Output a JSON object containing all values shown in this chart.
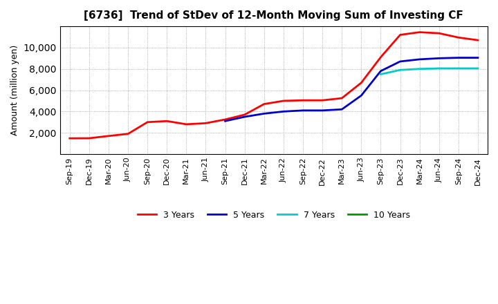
{
  "title": "[6736]  Trend of StDev of 12-Month Moving Sum of Investing CF",
  "ylabel": "Amount (million yen)",
  "background_color": "#ffffff",
  "plot_bg_color": "#ffffff",
  "grid_color": "#999999",
  "x_labels": [
    "Sep-19",
    "Dec-19",
    "Mar-20",
    "Jun-20",
    "Sep-20",
    "Dec-20",
    "Mar-21",
    "Jun-21",
    "Sep-21",
    "Dec-21",
    "Mar-22",
    "Jun-22",
    "Sep-22",
    "Dec-22",
    "Mar-23",
    "Jun-23",
    "Sep-23",
    "Dec-23",
    "Mar-24",
    "Jun-24",
    "Sep-24",
    "Dec-24"
  ],
  "series": {
    "3 Years": {
      "color": "#ff0000",
      "data_x": [
        0,
        1,
        2,
        3,
        4,
        5,
        6,
        7,
        8,
        9,
        10,
        11,
        12,
        13,
        14,
        15,
        16,
        17,
        18,
        19,
        20,
        21
      ],
      "data_y": [
        1480,
        1490,
        1700,
        1900,
        3000,
        3100,
        2800,
        2900,
        3250,
        3700,
        4700,
        5000,
        5050,
        5050,
        5250,
        6700,
        9100,
        11200,
        11450,
        11350,
        10950,
        10700
      ]
    },
    "5 Years": {
      "color": "#0000cc",
      "data_x": [
        8,
        9,
        10,
        11,
        12,
        13,
        14,
        15,
        16,
        17,
        18,
        19,
        20,
        21
      ],
      "data_y": [
        3100,
        3500,
        3800,
        4000,
        4100,
        4100,
        4200,
        5500,
        7800,
        8700,
        8900,
        9000,
        9050,
        9050
      ]
    },
    "7 Years": {
      "color": "#00cccc",
      "data_x": [
        16,
        17,
        18,
        19,
        20,
        21
      ],
      "data_y": [
        7500,
        7900,
        8000,
        8050,
        8050,
        8050
      ]
    },
    "10 Years": {
      "color": "#009900",
      "data_x": [],
      "data_y": []
    }
  },
  "ylim": [
    0,
    12000
  ],
  "yticks": [
    2000,
    4000,
    6000,
    8000,
    10000
  ],
  "legend_labels": [
    "3 Years",
    "5 Years",
    "7 Years",
    "10 Years"
  ],
  "legend_colors": [
    "#ff0000",
    "#0000cc",
    "#00cccc",
    "#009900"
  ],
  "title_fontsize": 11,
  "ylabel_fontsize": 9,
  "tick_fontsize": 8
}
